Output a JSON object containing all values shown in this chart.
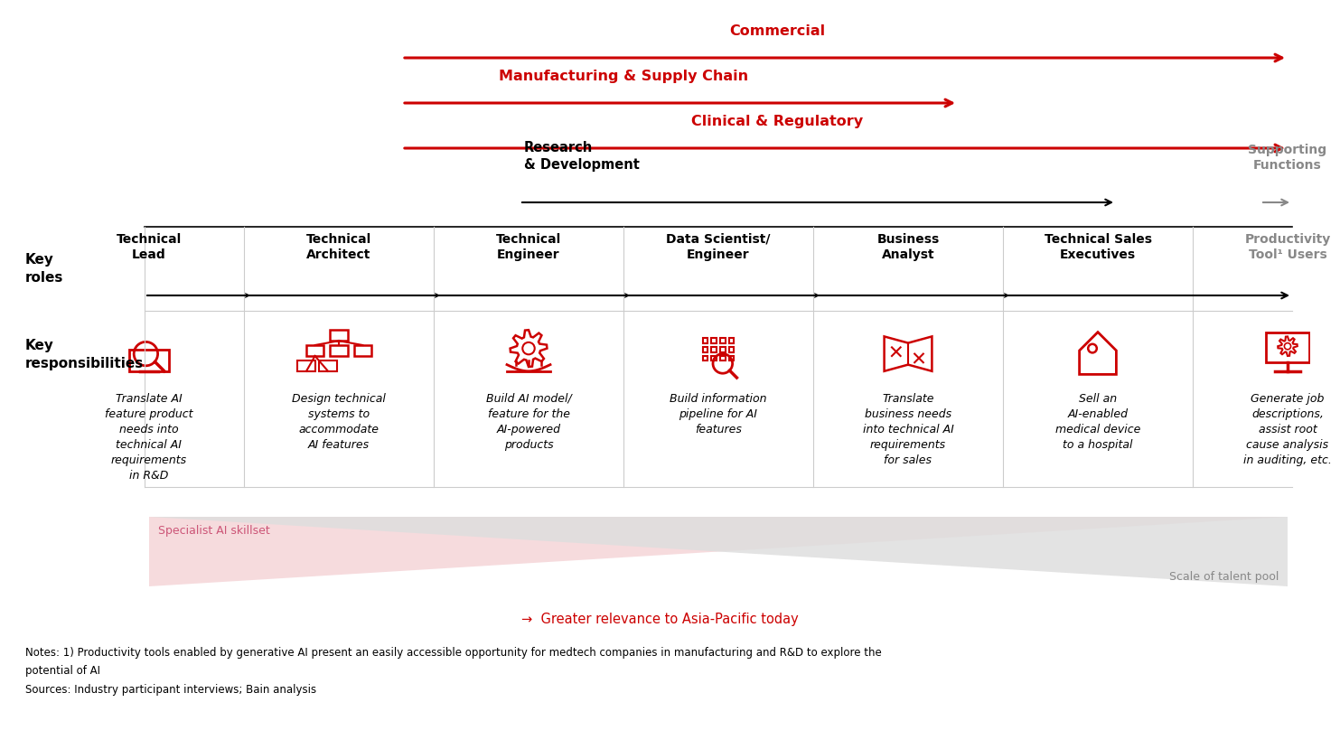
{
  "bg_color": "#ffffff",
  "red_color": "#CC0000",
  "gray_color": "#888888",
  "pink_tri_color": "#f2d5d5",
  "gray_tri_color": "#e2e2e2",
  "roles": [
    "Technical\nLead",
    "Technical\nArchitect",
    "Technical\nEngineer",
    "Data Scientist/\nEngineer",
    "Business\nAnalyst",
    "Technical Sales\nExecutives",
    "Productivity\nTool¹ Users"
  ],
  "responsibilities": [
    "Translate AI\nfeature product\nneeds into\ntechnical AI\nrequirements\nin R&D",
    "Design technical\nsystems to\naccommodate\nAI features",
    "Build AI model/\nfeature for the\nAI-powered\nproducts",
    "Build information\npipeline for AI\nfeatures",
    "Translate\nbusiness needs\ninto technical AI\nrequirements\nfor sales",
    "Sell an\nAI-enabled\nmedical device\nto a hospital",
    "Generate job\ndescriptions,\nassist root\ncause analysis\nin auditing, etc."
  ],
  "chain_labels": [
    "Commercial",
    "Manufacturing & Supply Chain",
    "Clinical & Regulatory"
  ],
  "footnote_line1": "Notes: 1) Productivity tools enabled by generative AI present an easily accessible opportunity for medtech companies in manufacturing and R&D to explore the",
  "footnote_line2": "potential of AI",
  "sources": "Sources: Industry participant interviews; Bain analysis",
  "relevance_label": "→  Greater relevance to Asia-Pacific today",
  "specialist_label": "Specialist AI skillset",
  "scale_label": "Scale of talent pool"
}
